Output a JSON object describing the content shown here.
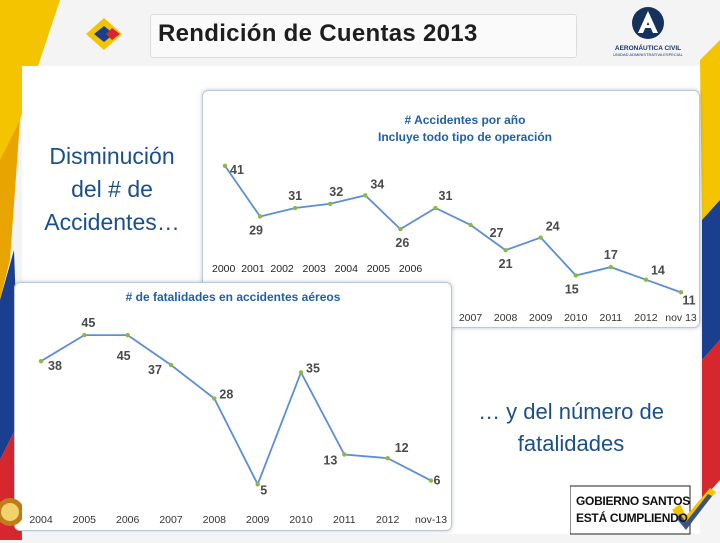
{
  "header": {
    "title": "Rendición de Cuentas 2013"
  },
  "logo": {
    "line1": "AERONÁUTICA CIVIL",
    "line2": "UNIDAD ADMINISTRATIVA ESPECIAL"
  },
  "left_text": "Disminución del # de Accidentes…",
  "right_text": "… y del número de fatalidades",
  "overlay_years": "2000  2001  2002   2003   2004   2005   2006",
  "footer_logo": {
    "line1": "GOBIERNO SANTOS",
    "line2": "ESTÁ CUMPLIENDO"
  },
  "colors": {
    "line": "#5b8ed6",
    "title": "#1f5fa8",
    "text": "#4a4a4a",
    "left_stripe": "#f5c400"
  },
  "chart_data": [
    {
      "type": "line",
      "title": "# Accidentes por año",
      "subtitle": "Incluye todo tipo de operación",
      "categories": [
        "2000",
        "2001",
        "2002",
        "2003",
        "2004",
        "2005",
        "2006",
        "2007",
        "2008",
        "2009",
        "2010",
        "2011",
        "2012",
        "nov 13"
      ],
      "visible_x_labels": [
        "2007",
        "2008",
        "2009",
        "2010",
        "2011",
        "2012",
        "nov 13"
      ],
      "values": [
        41,
        29,
        31,
        32,
        34,
        26,
        31,
        27,
        21,
        24,
        15,
        17,
        14,
        11
      ],
      "ylim": [
        8,
        45
      ],
      "grid": false
    },
    {
      "type": "line",
      "title": "# de fatalidades en accidentes aéreos",
      "categories": [
        "2004",
        "2005",
        "2006",
        "2007",
        "2008",
        "2009",
        "2010",
        "2011",
        "2012",
        "nov-13"
      ],
      "values": [
        38,
        45,
        45,
        37,
        28,
        5,
        35,
        13,
        12,
        6
      ],
      "ylim": [
        0,
        52
      ],
      "grid": false
    }
  ]
}
